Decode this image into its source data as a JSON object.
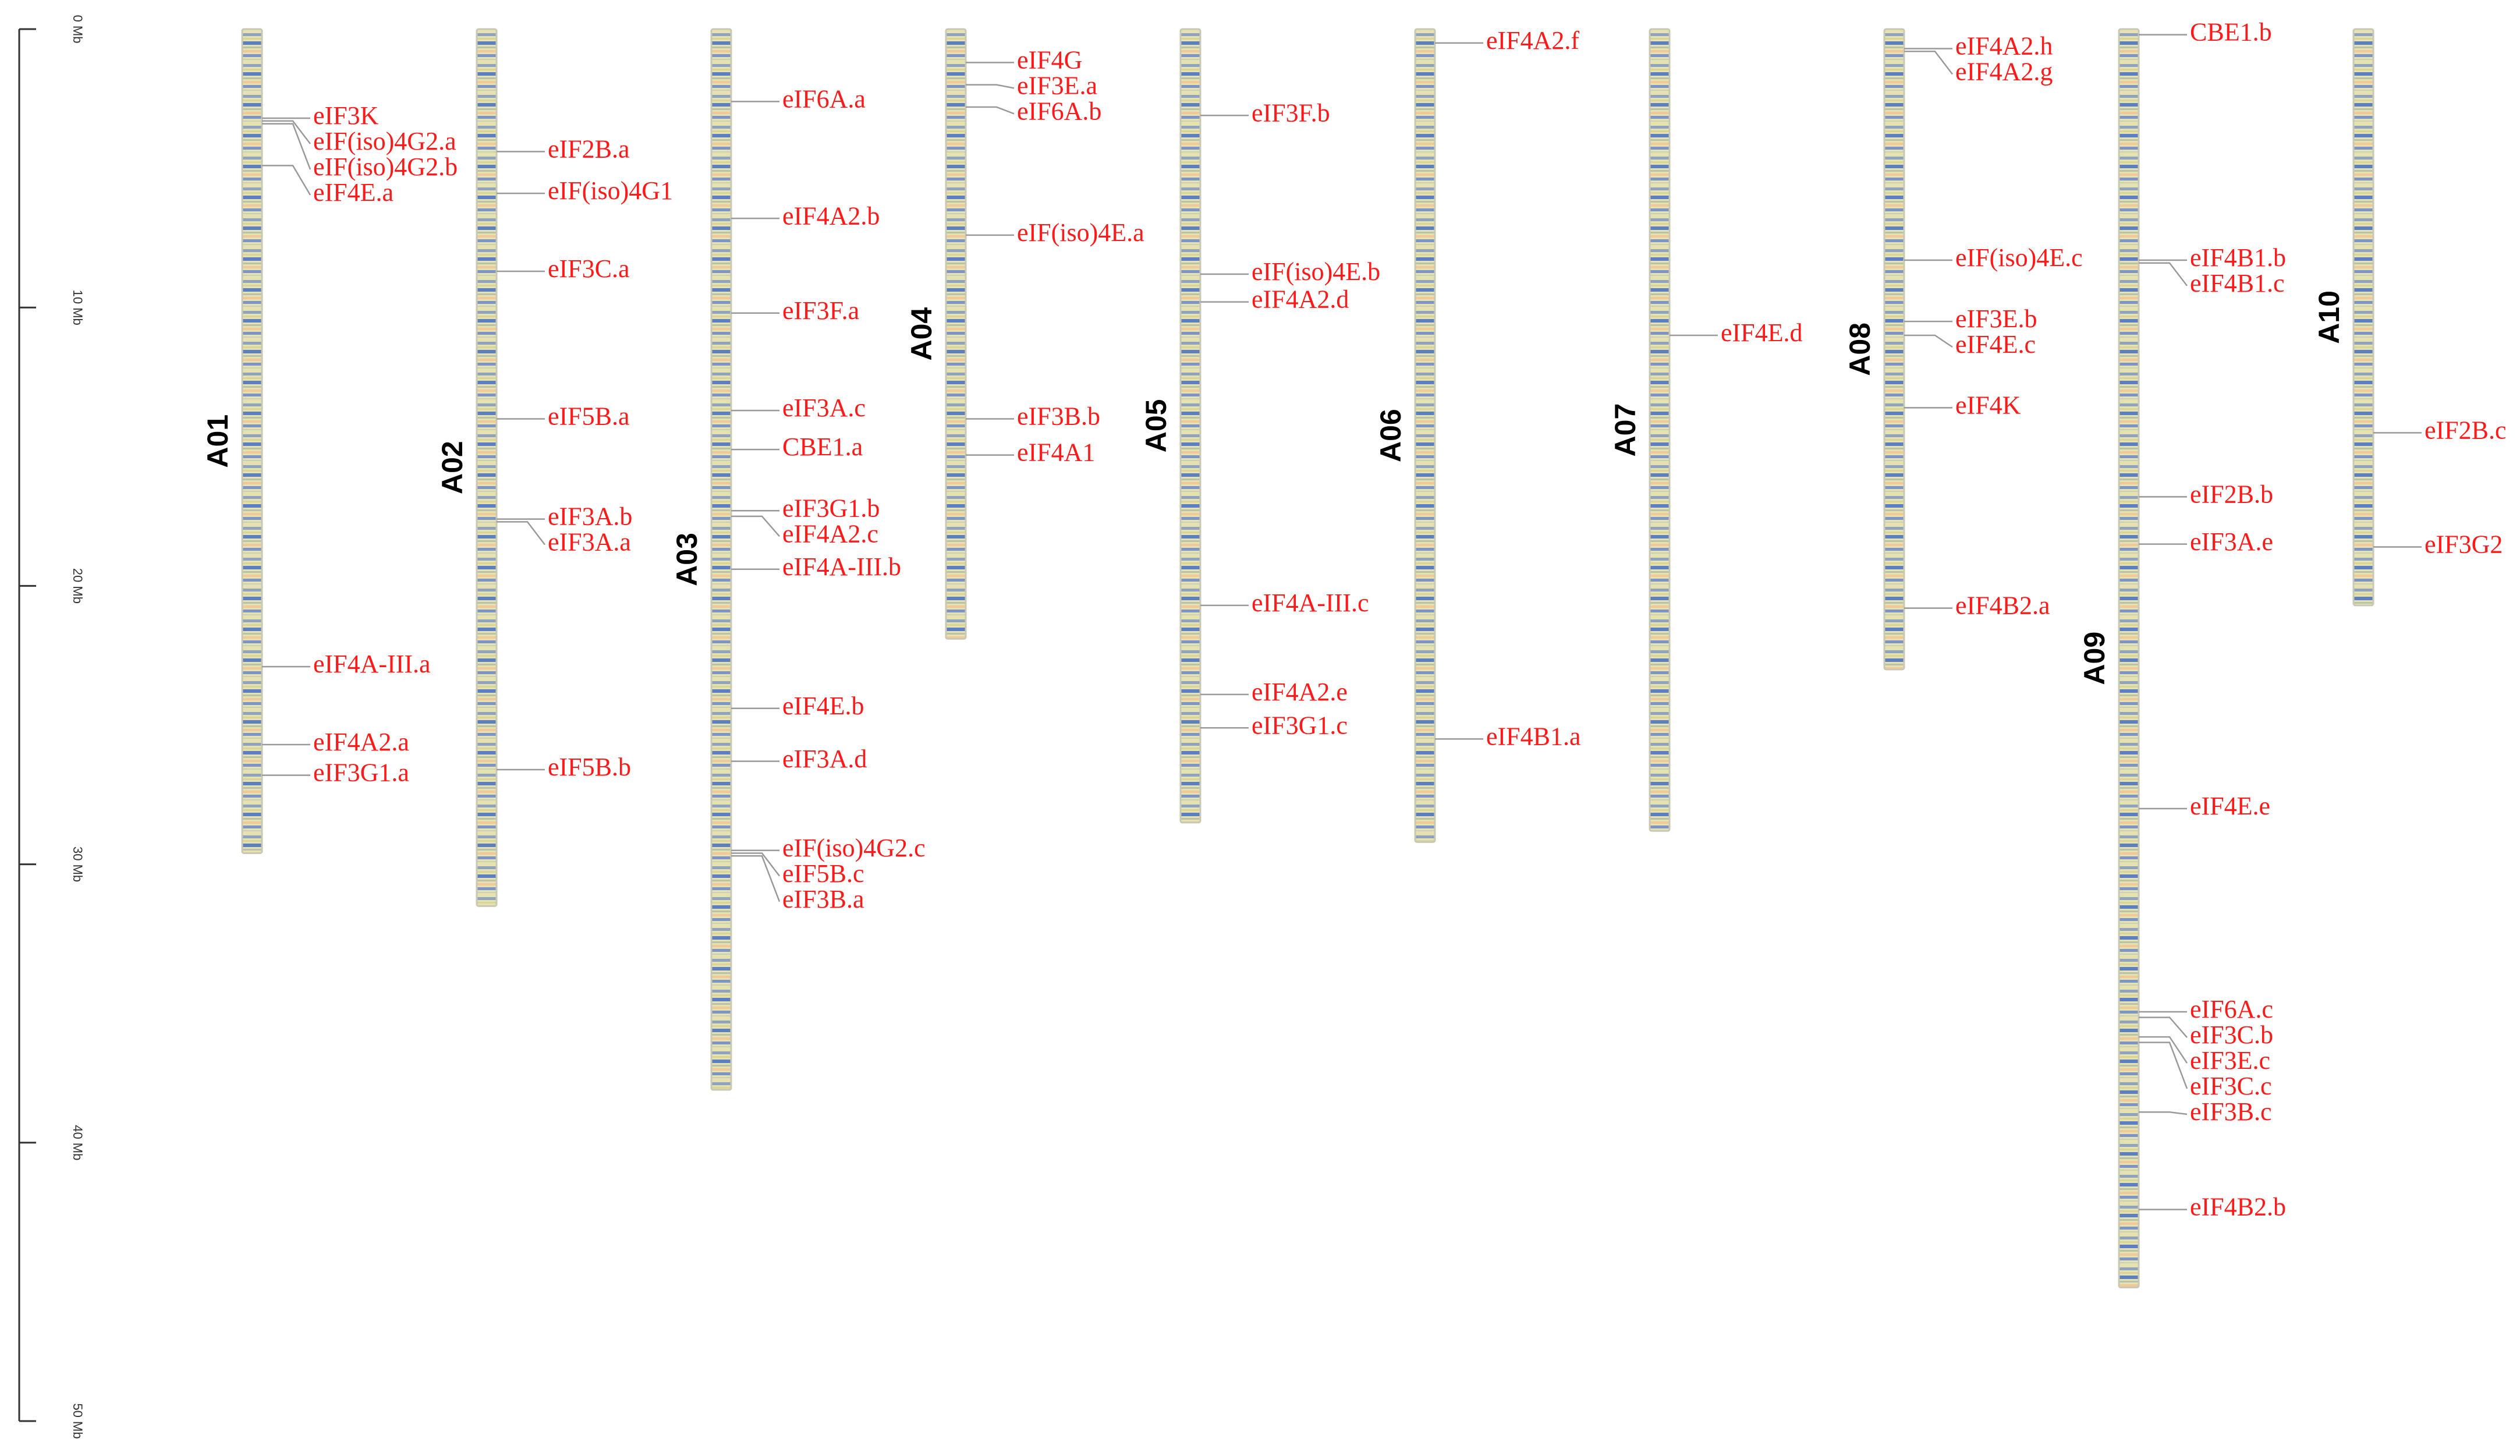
{
  "chart_data": {
    "type": "chromosome-map",
    "label_color": "#ff1a1a",
    "ylim": [
      0,
      50
    ],
    "yticks": [
      {
        "value": 0,
        "label": "0 Mb"
      },
      {
        "value": 10,
        "label": "10 Mb"
      },
      {
        "value": 20,
        "label": "20 Mb"
      },
      {
        "value": 30,
        "label": "30 Mb"
      },
      {
        "value": 40,
        "label": "40 Mb"
      },
      {
        "value": 50,
        "label": "50 Mb"
      }
    ],
    "chromosomes": [
      {
        "name": "A01",
        "length": 29.6,
        "genes": [
          {
            "name": "eIF3K",
            "position": 3.2
          },
          {
            "name": "eIF(iso)4G2.a",
            "position": 3.3
          },
          {
            "name": "eIF(iso)4G2.b",
            "position": 3.4
          },
          {
            "name": "eIF4E.a",
            "position": 4.9
          },
          {
            "name": "eIF4A-III.a",
            "position": 22.9
          },
          {
            "name": "eIF4A2.a",
            "position": 25.7
          },
          {
            "name": "eIF3G1.a",
            "position": 26.8
          }
        ]
      },
      {
        "name": "A02",
        "length": 31.5,
        "genes": [
          {
            "name": "eIF2B.a",
            "position": 4.4
          },
          {
            "name": "eIF(iso)4G1",
            "position": 5.9
          },
          {
            "name": "eIF3C.a",
            "position": 8.7
          },
          {
            "name": "eIF5B.a",
            "position": 14.0
          },
          {
            "name": "eIF3A.b",
            "position": 17.6
          },
          {
            "name": "eIF3A.a",
            "position": 17.7
          },
          {
            "name": "eIF5B.b",
            "position": 26.6
          }
        ]
      },
      {
        "name": "A03",
        "length": 38.1,
        "genes": [
          {
            "name": "eIF6A.a",
            "position": 2.6
          },
          {
            "name": "eIF4A2.b",
            "position": 6.8
          },
          {
            "name": "eIF3F.a",
            "position": 10.2
          },
          {
            "name": "eIF3A.c",
            "position": 13.7
          },
          {
            "name": "CBE1.a",
            "position": 15.1
          },
          {
            "name": "eIF3G1.b",
            "position": 17.3
          },
          {
            "name": "eIF4A2.c",
            "position": 17.5
          },
          {
            "name": "eIF4A-III.b",
            "position": 19.4
          },
          {
            "name": "eIF4E.b",
            "position": 24.4
          },
          {
            "name": "eIF3A.d",
            "position": 26.3
          },
          {
            "name": "eIF(iso)4G2.c",
            "position": 29.5
          },
          {
            "name": "eIF5B.c",
            "position": 29.6
          },
          {
            "name": "eIF3B.a",
            "position": 29.7
          }
        ]
      },
      {
        "name": "A04",
        "length": 21.9,
        "genes": [
          {
            "name": "eIF4G",
            "position": 1.2
          },
          {
            "name": "eIF3E.a",
            "position": 2.0
          },
          {
            "name": "eIF6A.b",
            "position": 2.8
          },
          {
            "name": "eIF(iso)4E.a",
            "position": 7.4
          },
          {
            "name": "eIF3B.b",
            "position": 14.0
          },
          {
            "name": "eIF4A1",
            "position": 15.3
          }
        ]
      },
      {
        "name": "A05",
        "length": 28.5,
        "genes": [
          {
            "name": "eIF3F.b",
            "position": 3.1
          },
          {
            "name": "eIF(iso)4E.b",
            "position": 8.8
          },
          {
            "name": "eIF4A2.d",
            "position": 9.8
          },
          {
            "name": "eIF4A-III.c",
            "position": 20.7
          },
          {
            "name": "eIF4A2.e",
            "position": 23.9
          },
          {
            "name": "eIF3G1.c",
            "position": 25.1
          }
        ]
      },
      {
        "name": "A06",
        "length": 29.2,
        "genes": [
          {
            "name": "eIF4A2.f",
            "position": 0.5
          },
          {
            "name": "eIF4B1.a",
            "position": 25.5
          }
        ]
      },
      {
        "name": "A07",
        "length": 28.8,
        "genes": [
          {
            "name": "eIF4E.d",
            "position": 11.0
          }
        ]
      },
      {
        "name": "A08",
        "length": 23.0,
        "genes": [
          {
            "name": "eIF4A2.h",
            "position": 0.7
          },
          {
            "name": "eIF4A2.g",
            "position": 0.8
          },
          {
            "name": "eIF(iso)4E.c",
            "position": 8.3
          },
          {
            "name": "eIF3E.b",
            "position": 10.5
          },
          {
            "name": "eIF4E.c",
            "position": 11.0
          },
          {
            "name": "eIF4K",
            "position": 13.6
          },
          {
            "name": "eIF4B2.a",
            "position": 20.8
          }
        ]
      },
      {
        "name": "A09",
        "length": 45.2,
        "genes": [
          {
            "name": "CBE1.b",
            "position": 0.2
          },
          {
            "name": "eIF4B1.b",
            "position": 8.3
          },
          {
            "name": "eIF4B1.c",
            "position": 8.4
          },
          {
            "name": "eIF2B.b",
            "position": 16.8
          },
          {
            "name": "eIF3A.e",
            "position": 18.5
          },
          {
            "name": "eIF4E.e",
            "position": 28.0
          },
          {
            "name": "eIF6A.c",
            "position": 35.3
          },
          {
            "name": "eIF3C.b",
            "position": 35.5
          },
          {
            "name": "eIF3E.c",
            "position": 36.2
          },
          {
            "name": "eIF3C.c",
            "position": 36.4
          },
          {
            "name": "eIF3B.c",
            "position": 38.9
          },
          {
            "name": "eIF4B2.b",
            "position": 42.4
          }
        ]
      },
      {
        "name": "A10",
        "length": 20.7,
        "genes": [
          {
            "name": "eIF2B.c",
            "position": 14.5
          },
          {
            "name": "eIF3G2",
            "position": 18.6
          }
        ]
      }
    ]
  }
}
